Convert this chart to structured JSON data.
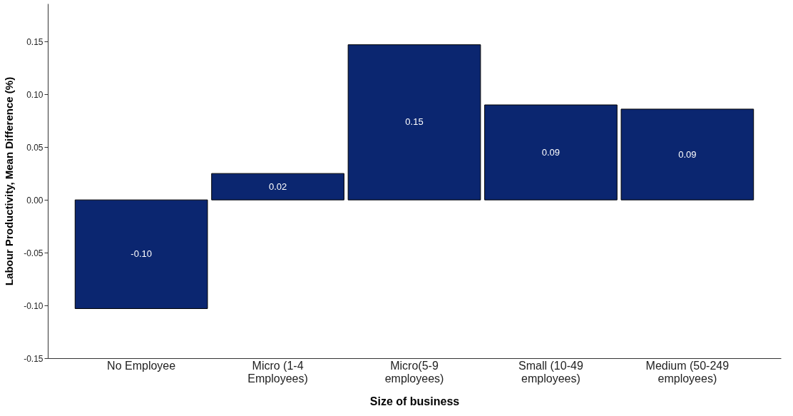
{
  "chart_data": {
    "type": "bar",
    "xlabel": "Size of business",
    "ylabel": "Labour Productivity, Mean Difference (%)",
    "categories": [
      "No Employee",
      "Micro (1-4 Employees)",
      "Micro(5-9 employees)",
      "Small (10-49 employees)",
      "Medium (50-249 employees)"
    ],
    "values": [
      -0.103,
      0.025,
      0.147,
      0.09,
      0.086
    ],
    "value_labels": [
      "-0.10",
      "0.02",
      "0.15",
      "0.09",
      "0.09"
    ],
    "color": "#0b2670",
    "ylim": [
      -0.15,
      0.186
    ],
    "yticks": [
      {
        "value": -0.15,
        "label": "-0.15"
      },
      {
        "value": -0.1,
        "label": "-0.10"
      },
      {
        "value": -0.05,
        "label": "-0.05"
      },
      {
        "value": 0,
        "label": "0.00"
      },
      {
        "value": 0.05,
        "label": "0.05"
      },
      {
        "value": 0.1,
        "label": "0.10"
      },
      {
        "value": 0.15,
        "label": "0.15"
      }
    ],
    "grid": false
  }
}
